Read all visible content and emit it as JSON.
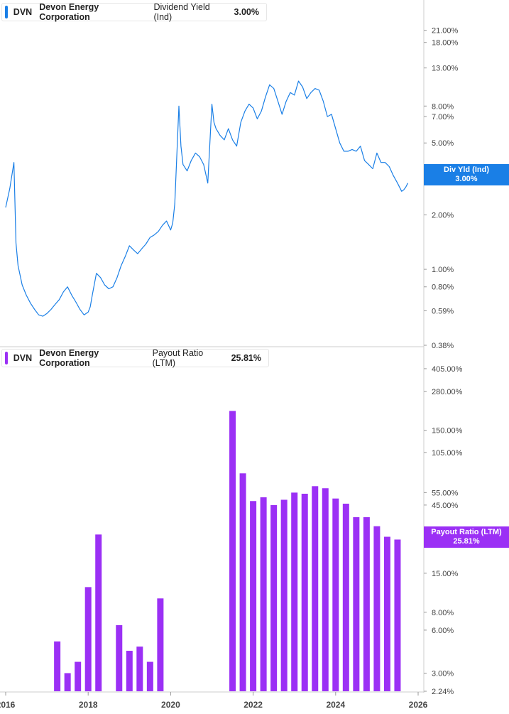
{
  "colors": {
    "dividend_yield": "#1a7fe6",
    "payout_ratio": "#9b30f5",
    "grid": "#e9e9e9",
    "axis_text": "#444444"
  },
  "top_panel": {
    "legend": {
      "ticker": "DVN",
      "company": "Devon Energy Corporation",
      "metric": "Dividend Yield (Ind)",
      "value": "3.00%"
    },
    "tag": {
      "label": "Div Yld (Ind)",
      "value": "3.00%"
    }
  },
  "bottom_panel": {
    "legend": {
      "ticker": "DVN",
      "company": "Devon Energy Corporation",
      "metric": "Payout Ratio (LTM)",
      "value": "25.81%"
    },
    "tag": {
      "label": "Payout Ratio (LTM)",
      "value": "25.81%"
    }
  },
  "chart_data": [
    {
      "type": "line",
      "series": [
        {
          "name": "Dividend Yield (Ind)",
          "x": [
            2016.0,
            2016.1,
            2016.2,
            2016.25,
            2016.3,
            2016.4,
            2016.5,
            2016.6,
            2016.7,
            2016.8,
            2016.9,
            2017.0,
            2017.1,
            2017.2,
            2017.3,
            2017.4,
            2017.5,
            2017.6,
            2017.7,
            2017.8,
            2017.9,
            2018.0,
            2018.05,
            2018.1,
            2018.2,
            2018.3,
            2018.4,
            2018.5,
            2018.6,
            2018.7,
            2018.8,
            2018.9,
            2019.0,
            2019.1,
            2019.2,
            2019.3,
            2019.4,
            2019.5,
            2019.6,
            2019.7,
            2019.8,
            2019.9,
            2020.0,
            2020.05,
            2020.1,
            2020.2,
            2020.25,
            2020.3,
            2020.4,
            2020.5,
            2020.6,
            2020.7,
            2020.8,
            2020.9,
            2021.0,
            2021.05,
            2021.1,
            2021.2,
            2021.3,
            2021.4,
            2021.5,
            2021.6,
            2021.7,
            2021.8,
            2021.9,
            2022.0,
            2022.1,
            2022.2,
            2022.3,
            2022.4,
            2022.5,
            2022.6,
            2022.7,
            2022.8,
            2022.9,
            2023.0,
            2023.1,
            2023.2,
            2023.3,
            2023.4,
            2023.5,
            2023.6,
            2023.7,
            2023.8,
            2023.9,
            2024.0,
            2024.1,
            2024.2,
            2024.3,
            2024.4,
            2024.5,
            2024.6,
            2024.7,
            2024.8,
            2024.9,
            2025.0,
            2025.1,
            2025.2,
            2025.3,
            2025.4,
            2025.5,
            2025.6,
            2025.65,
            2025.7,
            2025.75
          ],
          "y": [
            2.2,
            2.8,
            3.9,
            1.4,
            1.05,
            0.82,
            0.72,
            0.65,
            0.6,
            0.56,
            0.55,
            0.57,
            0.6,
            0.64,
            0.68,
            0.75,
            0.8,
            0.72,
            0.66,
            0.6,
            0.56,
            0.58,
            0.62,
            0.72,
            0.95,
            0.9,
            0.82,
            0.78,
            0.8,
            0.9,
            1.05,
            1.18,
            1.35,
            1.28,
            1.22,
            1.3,
            1.38,
            1.5,
            1.55,
            1.62,
            1.75,
            1.85,
            1.65,
            1.8,
            2.3,
            8.0,
            4.8,
            3.8,
            3.5,
            4.0,
            4.4,
            4.2,
            3.8,
            3.0,
            8.2,
            6.5,
            6.0,
            5.5,
            5.2,
            6.0,
            5.2,
            4.8,
            6.5,
            7.5,
            8.2,
            7.8,
            6.8,
            7.5,
            9.0,
            10.5,
            10.0,
            8.5,
            7.2,
            8.5,
            9.5,
            9.2,
            11.0,
            10.2,
            8.8,
            9.5,
            10.0,
            9.8,
            8.5,
            7.0,
            7.2,
            6.0,
            5.0,
            4.5,
            4.5,
            4.6,
            4.5,
            4.8,
            4.0,
            3.8,
            3.6,
            4.4,
            3.9,
            3.9,
            3.7,
            3.3,
            3.0,
            2.7,
            2.75,
            2.85,
            3.0
          ]
        }
      ],
      "ylim": [
        0.38,
        25
      ],
      "y_scale": "log",
      "y_tick_labels": [
        "21.00%",
        "18.00%",
        "13.00%",
        "8.00%",
        "7.00%",
        "5.00%",
        "2.00%",
        "1.00%",
        "0.80%",
        "0.59%",
        "0.38%"
      ],
      "y_ticks": [
        21.0,
        18.0,
        13.0,
        8.0,
        7.0,
        5.0,
        2.0,
        1.0,
        0.8,
        0.59,
        0.38
      ],
      "xlim": [
        2016.0,
        2026.0
      ],
      "grid": true
    },
    {
      "type": "bar",
      "series": [
        {
          "name": "Payout Ratio (LTM)",
          "x": [
            2017.25,
            2017.5,
            2017.75,
            2018.0,
            2018.25,
            2018.75,
            2019.0,
            2019.25,
            2019.5,
            2019.75,
            2021.5,
            2021.75,
            2022.0,
            2022.25,
            2022.5,
            2022.75,
            2023.0,
            2023.25,
            2023.5,
            2023.75,
            2024.0,
            2024.25,
            2024.5,
            2024.75,
            2025.0,
            2025.25,
            2025.5
          ],
          "values": [
            5.0,
            3.0,
            3.6,
            12.0,
            28.0,
            6.5,
            4.3,
            4.6,
            3.6,
            10.0,
            205.0,
            75.0,
            48.0,
            51.0,
            45.0,
            49.0,
            55.0,
            54.0,
            61.0,
            59.0,
            50.0,
            46.0,
            37.0,
            37.0,
            32.0,
            27.0,
            25.81
          ]
        }
      ],
      "ylim": [
        2.24,
        450
      ],
      "y_scale": "log",
      "y_tick_labels": [
        "405.00%",
        "280.00%",
        "150.00%",
        "105.00%",
        "55.00%",
        "45.00%",
        "15.00%",
        "8.00%",
        "6.00%",
        "3.00%",
        "2.24%"
      ],
      "y_ticks": [
        405.0,
        280.0,
        150.0,
        105.0,
        55.0,
        45.0,
        15.0,
        8.0,
        6.0,
        3.0,
        2.24
      ],
      "categories": [
        "2016",
        "2018",
        "2020",
        "2022",
        "2024",
        "2026"
      ],
      "x_ticks": [
        2016,
        2018,
        2020,
        2022,
        2024,
        2026
      ],
      "xlim": [
        2016.0,
        2026.0
      ],
      "grid": true
    }
  ]
}
